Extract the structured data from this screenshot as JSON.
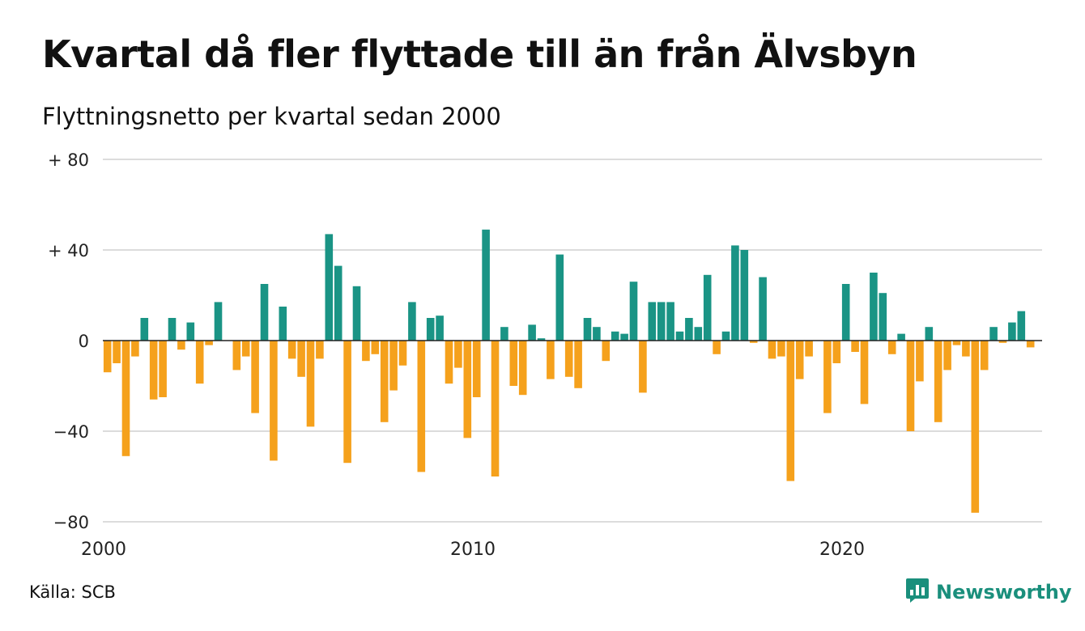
{
  "title": "Kvartal då fler flyttade till än från Älvsbyn",
  "subtitle": "Flyttningsnetto per kvartal sedan 2000",
  "source": "Källa: SCB",
  "brand": {
    "name": "Newsworthy",
    "icon": "bar-chart-logo-icon"
  },
  "colors": {
    "positive": "#1a9485",
    "negative": "#f5a11c",
    "grid": "#dcdcdc",
    "zero_line": "#222222"
  },
  "chart_data": {
    "type": "bar",
    "title": "Kvartal då fler flyttade till än från Älvsbyn",
    "subtitle": "Flyttningsnetto per kvartal sedan 2000",
    "x_start": "2000 Q1",
    "frequency": "quarterly",
    "xticks": [
      {
        "value": 2000,
        "label": "2000"
      },
      {
        "value": 2010,
        "label": "2010"
      },
      {
        "value": 2020,
        "label": "2020"
      }
    ],
    "yticks": [
      {
        "value": 80,
        "label": "+ 80"
      },
      {
        "value": 40,
        "label": "+ 40"
      },
      {
        "value": 0,
        "label": "0"
      },
      {
        "value": -40,
        "label": "−40"
      },
      {
        "value": -80,
        "label": "−80"
      }
    ],
    "ylim": [
      -80,
      80
    ],
    "grid": true,
    "color_rule": "positive values teal, negative values orange",
    "values": [
      -14,
      -10,
      -51,
      -7,
      10,
      -26,
      -25,
      10,
      -4,
      8,
      -19,
      -2,
      17,
      0,
      -13,
      -7,
      -32,
      25,
      -53,
      15,
      -8,
      -16,
      -38,
      -8,
      47,
      33,
      -54,
      24,
      -9,
      -6,
      -36,
      -22,
      -11,
      17,
      -58,
      10,
      11,
      -19,
      -12,
      -43,
      -25,
      49,
      -60,
      6,
      -20,
      -24,
      7,
      1,
      -17,
      38,
      -16,
      -21,
      10,
      6,
      -9,
      4,
      3,
      26,
      -23,
      17,
      17,
      17,
      4,
      10,
      6,
      29,
      -6,
      4,
      42,
      40,
      -1,
      28,
      -8,
      -7,
      -62,
      -17,
      -7,
      0,
      -32,
      -10,
      25,
      -5,
      -28,
      30,
      21,
      -6,
      3,
      -40,
      -18,
      6,
      -36,
      -13,
      -2,
      -7,
      -76,
      -13,
      6,
      -1,
      8,
      13,
      -3
    ]
  }
}
